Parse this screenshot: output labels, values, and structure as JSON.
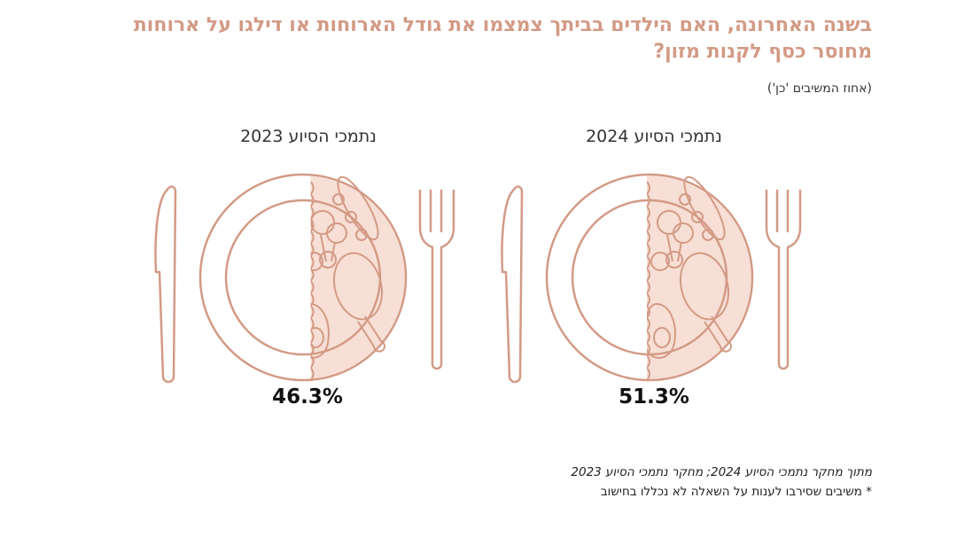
{
  "title": "בשנה האחרונה, האם הילדים בביתך צמצמו את גודל הארוחות או דילגו על ארוחות מחוסר כסף לקנות מזון?",
  "subtitle": "(אחוז המשיבים 'כן')",
  "chart_data": {
    "type": "pie",
    "unit": "%",
    "title": "בשנה האחרונה, האם הילדים בביתך צמצמו את גודל הארוחות או דילגו על ארוחות מחוסר כסף לקנות מזון?",
    "panels": [
      {
        "label": "נתמכי הסיוע 2024",
        "value": 51.3,
        "value_label": "51.3%"
      },
      {
        "label": "נתמכי הסיוע 2023",
        "value": 46.3,
        "value_label": "46.3%"
      }
    ]
  },
  "notes": {
    "source": "מתוך מחקר נתמכי הסיוע 2024; מחקר נתמכי הסיוע 2023",
    "footnote": "* משיבים שסירבו לענות על השאלה לא נכללו בחישוב"
  },
  "colors": {
    "accent": "#d39a85",
    "fill": "#f7dfd5",
    "title": "#d39a85"
  }
}
